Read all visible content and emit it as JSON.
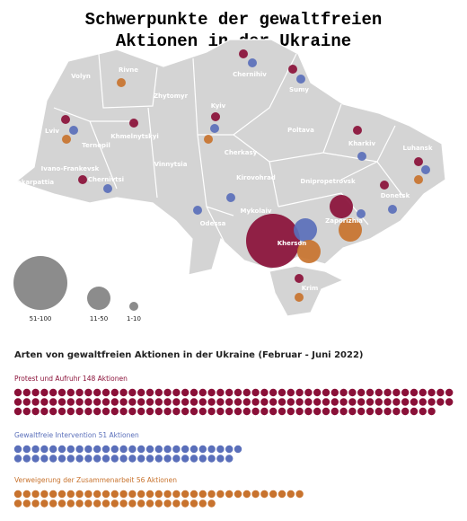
{
  "title_lines": [
    "Schwerpunkte der gewaltfreien",
    "Aktionen in der Ukraine"
  ],
  "map": {
    "regions": [
      {
        "label": "Volyn",
        "bubbles": []
      },
      {
        "label": "Rivne",
        "bubbles": [
          {
            "color": "#c8732e",
            "size": "1-10"
          }
        ]
      },
      {
        "label": "Zhytomyr",
        "bubbles": []
      },
      {
        "label": "Chernihiv",
        "bubbles": [
          {
            "color": "#8a1038",
            "size": "1-10"
          },
          {
            "color": "#5a6fba",
            "size": "1-10"
          }
        ]
      },
      {
        "label": "Sumy",
        "bubbles": [
          {
            "color": "#8a1038",
            "size": "1-10"
          },
          {
            "color": "#5a6fba",
            "size": "1-10"
          }
        ]
      },
      {
        "label": "Kyiv",
        "bubbles": [
          {
            "color": "#8a1038",
            "size": "1-10"
          },
          {
            "color": "#5a6fba",
            "size": "1-10"
          },
          {
            "color": "#c8732e",
            "size": "1-10"
          }
        ]
      },
      {
        "label": "Lviv",
        "bubbles": [
          {
            "color": "#8a1038",
            "size": "1-10"
          },
          {
            "color": "#5a6fba",
            "size": "1-10"
          },
          {
            "color": "#c8732e",
            "size": "1-10"
          }
        ]
      },
      {
        "label": "Ternopil",
        "bubbles": []
      },
      {
        "label": "Khmelnytskyi",
        "bubbles": [
          {
            "color": "#8a1038",
            "size": "1-10"
          }
        ]
      },
      {
        "label": "Poltava",
        "bubbles": []
      },
      {
        "label": "Kharkiv",
        "bubbles": [
          {
            "color": "#8a1038",
            "size": "1-10"
          },
          {
            "color": "#5a6fba",
            "size": "1-10"
          }
        ]
      },
      {
        "label": "Luhansk",
        "bubbles": [
          {
            "color": "#8a1038",
            "size": "1-10"
          },
          {
            "color": "#5a6fba",
            "size": "1-10"
          },
          {
            "color": "#c8732e",
            "size": "1-10"
          }
        ]
      },
      {
        "label": "Ivano-Frankevsk",
        "bubbles": [
          {
            "color": "#8a1038",
            "size": "1-10"
          }
        ]
      },
      {
        "label": "Cherkasy",
        "bubbles": []
      },
      {
        "label": "Vinnytsia",
        "bubbles": []
      },
      {
        "label": "Zakarpattia",
        "bubbles": []
      },
      {
        "label": "Chernivtsi",
        "bubbles": [
          {
            "color": "#5a6fba",
            "size": "1-10"
          }
        ]
      },
      {
        "label": "Kirovohrad",
        "bubbles": []
      },
      {
        "label": "Dnipropetrovsk",
        "bubbles": []
      },
      {
        "label": "Donetsk",
        "bubbles": [
          {
            "color": "#8a1038",
            "size": "1-10"
          },
          {
            "color": "#5a6fba",
            "size": "1-10"
          }
        ]
      },
      {
        "label": "Odessa",
        "bubbles": [
          {
            "color": "#5a6fba",
            "size": "1-10"
          }
        ]
      },
      {
        "label": "Mykolaiv",
        "bubbles": [
          {
            "color": "#5a6fba",
            "size": "1-10"
          }
        ]
      },
      {
        "label": "Zaporizhia",
        "bubbles": [
          {
            "color": "#8a1038",
            "size": "11-50"
          },
          {
            "color": "#5a6fba",
            "size": "1-10"
          },
          {
            "color": "#c8732e",
            "size": "11-50"
          }
        ]
      },
      {
        "label": "Kherson",
        "bubbles": [
          {
            "color": "#8a1038",
            "size": "51-100"
          },
          {
            "color": "#5a6fba",
            "size": "11-50"
          },
          {
            "color": "#c8732e",
            "size": "11-50"
          }
        ]
      },
      {
        "label": "Krim",
        "bubbles": [
          {
            "color": "#8a1038",
            "size": "1-10"
          },
          {
            "color": "#c8732e",
            "size": "1-10"
          }
        ]
      }
    ],
    "legend": [
      "51-100",
      "11-50",
      "1-10"
    ]
  },
  "chart_data": {
    "type": "pictogram",
    "title": "Arten von gewaltfreien Aktionen in der Ukraine (Februar - Juni 2022)",
    "series": [
      {
        "label": "Protest und Aufruhr 148 Aktionen",
        "value": 148,
        "color": "#8a1038"
      },
      {
        "label": "Gewaltfreie Intervention 51 Aktionen",
        "value": 51,
        "color": "#5a6fba"
      },
      {
        "label": "Verweigerung der Zusammenarbeit 56 Aktionen",
        "value": 56,
        "color": "#c8732e"
      }
    ]
  }
}
